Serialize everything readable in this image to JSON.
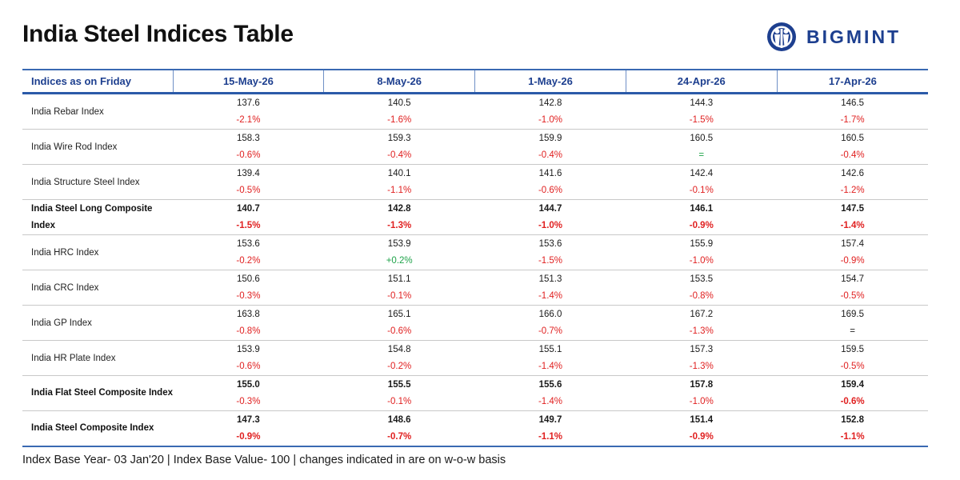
{
  "page": {
    "title": "India Steel Indices Table",
    "brand": "BIGMINT",
    "brand_color": "#1d3f8f",
    "accent_color": "#2b5aa8",
    "down_color": "#e02020",
    "up_color": "#1fa34a",
    "footer": "Index Base Year- 03 Jan'20 | Index Base Value- 100 | changes indicated in are on w-o-w basis"
  },
  "table": {
    "header_label": "Indices as on Friday",
    "dates": [
      "15-May-26",
      "8-May-26",
      "1-May-26",
      "24-Apr-26",
      "17-Apr-26"
    ],
    "rows": [
      {
        "name": "India Rebar Index",
        "bold": false,
        "values": [
          "137.6",
          "140.5",
          "142.8",
          "144.3",
          "146.5"
        ],
        "changes": [
          "-2.1%",
          "-1.6%",
          "-1.0%",
          "-1.5%",
          "-1.7%"
        ]
      },
      {
        "name": "India Wire Rod Index",
        "bold": false,
        "values": [
          "158.3",
          "159.3",
          "159.9",
          "160.5",
          "160.5"
        ],
        "changes": [
          "-0.6%",
          "-0.4%",
          "-0.4%",
          "=",
          "-0.4%"
        ]
      },
      {
        "name": "India Structure Steel Index",
        "bold": false,
        "values": [
          "139.4",
          "140.1",
          "141.6",
          "142.4",
          "142.6"
        ],
        "changes": [
          "-0.5%",
          "-1.1%",
          "-0.6%",
          "-0.1%",
          "-1.2%"
        ]
      },
      {
        "name": "India Steel Long Composite Index",
        "bold": true,
        "values": [
          "140.7",
          "142.8",
          "144.7",
          "146.1",
          "147.5"
        ],
        "changes": [
          "-1.5%",
          "-1.3%",
          "-1.0%",
          "-0.9%",
          "-1.4%"
        ]
      },
      {
        "name": "India HRC Index",
        "bold": false,
        "values": [
          "153.6",
          "153.9",
          "153.6",
          "155.9",
          "157.4"
        ],
        "changes": [
          "-0.2%",
          "+0.2%",
          "-1.5%",
          "-1.0%",
          "-0.9%"
        ]
      },
      {
        "name": "India CRC Index",
        "bold": false,
        "values": [
          "150.6",
          "151.1",
          "151.3",
          "153.5",
          "154.7"
        ],
        "changes": [
          "-0.3%",
          "-0.1%",
          "-1.4%",
          "-0.8%",
          "-0.5%"
        ]
      },
      {
        "name": "India GP Index",
        "bold": false,
        "values": [
          "163.8",
          "165.1",
          "166.0",
          "167.2",
          "169.5"
        ],
        "changes": [
          "-0.8%",
          "-0.6%",
          "-0.7%",
          "-1.3%",
          "="
        ]
      },
      {
        "name": "India HR Plate Index",
        "bold": false,
        "values": [
          "153.9",
          "154.8",
          "155.1",
          "157.3",
          "159.5"
        ],
        "changes": [
          "-0.6%",
          "-0.2%",
          "-1.4%",
          "-1.3%",
          "-0.5%"
        ]
      },
      {
        "name": "India Flat Steel Composite Index",
        "bold": true,
        "values": [
          "155.0",
          "155.5",
          "155.6",
          "157.8",
          "159.4"
        ],
        "changes": [
          "-0.3%",
          "-0.1%",
          "-1.4%",
          "-1.0%",
          "-0.6%"
        ]
      },
      {
        "name": "India Steel Composite Index",
        "bold": true,
        "values": [
          "147.3",
          "148.6",
          "149.7",
          "151.4",
          "152.8"
        ],
        "changes": [
          "-0.9%",
          "-0.7%",
          "-1.1%",
          "-0.9%",
          "-1.1%"
        ]
      }
    ]
  }
}
